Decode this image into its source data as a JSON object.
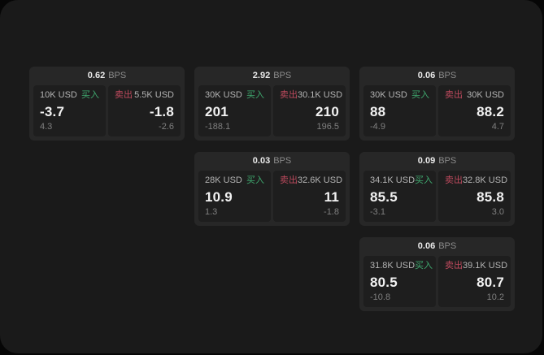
{
  "labels": {
    "buy": "买入",
    "sell": "卖出",
    "bps_unit": "BPS"
  },
  "colors": {
    "outer_bg": "#060606",
    "page_bg": "#1a1a1a",
    "card_bg": "#272727",
    "panel_bg": "#1e1e1e",
    "green": "#3fa96f",
    "red": "#bf4a5e",
    "price_text": "#f2f2f2",
    "muted_text": "#8b8b8b",
    "label_text": "#b3b3b3"
  },
  "cards": [
    {
      "bps": "0.62",
      "row": 1,
      "col": 1,
      "buy": {
        "size": "10K USD",
        "price": "-3.7",
        "delta": "4.3"
      },
      "sell": {
        "size": "5.5K USD",
        "price": "-1.8",
        "delta": "-2.6"
      }
    },
    {
      "bps": "2.92",
      "row": 1,
      "col": 2,
      "buy": {
        "size": "30K USD",
        "price": "201",
        "delta": "-188.1"
      },
      "sell": {
        "size": "30.1K USD",
        "price": "210",
        "delta": "196.5"
      }
    },
    {
      "bps": "0.06",
      "row": 1,
      "col": 3,
      "buy": {
        "size": "30K USD",
        "price": "88",
        "delta": "-4.9"
      },
      "sell": {
        "size": "30K USD",
        "price": "88.2",
        "delta": "4.7"
      }
    },
    {
      "bps": "0.03",
      "row": 2,
      "col": 2,
      "buy": {
        "size": "28K USD",
        "price": "10.9",
        "delta": "1.3"
      },
      "sell": {
        "size": "32.6K USD",
        "price": "11",
        "delta": "-1.8"
      }
    },
    {
      "bps": "0.09",
      "row": 2,
      "col": 3,
      "buy": {
        "size": "34.1K USD",
        "price": "85.5",
        "delta": "-3.1"
      },
      "sell": {
        "size": "32.8K USD",
        "price": "85.8",
        "delta": "3.0"
      }
    },
    {
      "bps": "0.06",
      "row": 3,
      "col": 3,
      "buy": {
        "size": "31.8K USD",
        "price": "80.5",
        "delta": "-10.8"
      },
      "sell": {
        "size": "39.1K USD",
        "price": "80.7",
        "delta": "10.2"
      }
    }
  ]
}
